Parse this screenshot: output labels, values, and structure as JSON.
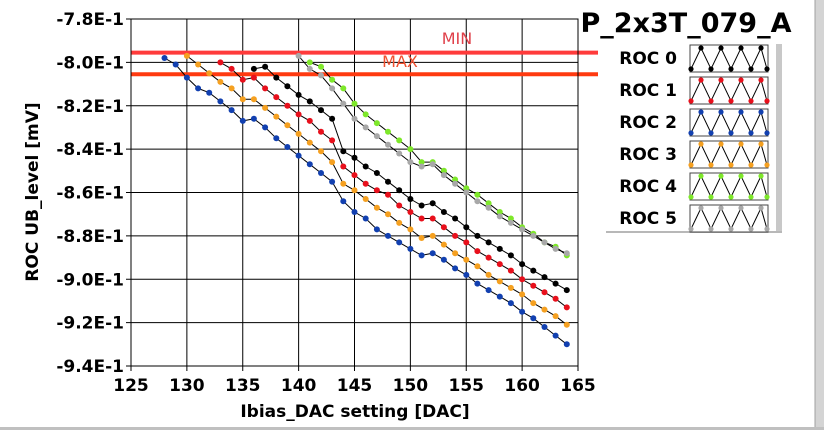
{
  "chart_data": {
    "type": "line",
    "title": "P_2x3T_079_A",
    "xlabel": "Ibias_DAC setting [DAC]",
    "ylabel": "ROC UB_level [mV]",
    "xlim": [
      125,
      165
    ],
    "ylim": [
      -0.94,
      -0.78
    ],
    "x_ticks": [
      125,
      130,
      135,
      140,
      145,
      150,
      155,
      160,
      165
    ],
    "x_tick_labels": [
      "125",
      "130",
      "135",
      "140",
      "145",
      "150",
      "155",
      "160",
      "165"
    ],
    "y_ticks": [
      -0.78,
      -0.8,
      -0.82,
      -0.84,
      -0.86,
      -0.88,
      -0.9,
      -0.92,
      -0.94
    ],
    "y_tick_labels": [
      "-7.8E-1",
      "-8.0E-1",
      "-8.2E-1",
      "-8.4E-1",
      "-8.6E-1",
      "-8.8E-1",
      "-9.0E-1",
      "-9.2E-1",
      "-9.4E-1"
    ],
    "grid": true,
    "legend_position": "right",
    "reference_lines": [
      {
        "label": "MIN",
        "value": -0.7955,
        "color": "#ff3b3b",
        "label_color": "#e0404a"
      },
      {
        "label": "MAX",
        "value": -0.8055,
        "color": "#ff3a10",
        "label_color": "#f05030"
      }
    ],
    "series": [
      {
        "name": "ROC 0",
        "color": "#000000",
        "x": [
          136,
          137,
          138,
          139,
          140,
          141,
          142,
          143,
          144,
          145,
          146,
          147,
          148,
          149,
          150,
          151,
          152,
          153,
          154,
          155,
          156,
          157,
          158,
          159,
          160,
          161,
          162,
          163,
          164
        ],
        "values": [
          -0.803,
          -0.802,
          -0.807,
          -0.811,
          -0.815,
          -0.818,
          -0.822,
          -0.826,
          -0.841,
          -0.844,
          -0.848,
          -0.851,
          -0.855,
          -0.859,
          -0.863,
          -0.866,
          -0.865,
          -0.869,
          -0.872,
          -0.876,
          -0.88,
          -0.883,
          -0.886,
          -0.889,
          -0.893,
          -0.896,
          -0.899,
          -0.902,
          -0.905
        ]
      },
      {
        "name": "ROC 1",
        "color": "#e8101c",
        "x": [
          133,
          134,
          135,
          136,
          137,
          138,
          139,
          140,
          141,
          142,
          143,
          144,
          145,
          146,
          147,
          148,
          149,
          150,
          151,
          152,
          153,
          154,
          155,
          156,
          157,
          158,
          159,
          160,
          161,
          162,
          163,
          164
        ],
        "values": [
          -0.8,
          -0.803,
          -0.808,
          -0.807,
          -0.812,
          -0.816,
          -0.82,
          -0.824,
          -0.827,
          -0.832,
          -0.836,
          -0.848,
          -0.852,
          -0.856,
          -0.859,
          -0.861,
          -0.866,
          -0.869,
          -0.872,
          -0.872,
          -0.876,
          -0.88,
          -0.883,
          -0.887,
          -0.89,
          -0.893,
          -0.896,
          -0.9,
          -0.903,
          -0.906,
          -0.909,
          -0.913
        ]
      },
      {
        "name": "ROC 2",
        "color": "#1240b0",
        "x": [
          128,
          129,
          130,
          131,
          132,
          133,
          134,
          135,
          136,
          137,
          138,
          139,
          140,
          141,
          142,
          143,
          144,
          145,
          146,
          147,
          148,
          149,
          150,
          151,
          152,
          153,
          154,
          155,
          156,
          157,
          158,
          159,
          160,
          161,
          162,
          163,
          164
        ],
        "values": [
          -0.798,
          -0.801,
          -0.807,
          -0.812,
          -0.814,
          -0.818,
          -0.822,
          -0.827,
          -0.826,
          -0.83,
          -0.835,
          -0.839,
          -0.843,
          -0.847,
          -0.851,
          -0.855,
          -0.864,
          -0.869,
          -0.872,
          -0.877,
          -0.88,
          -0.883,
          -0.886,
          -0.889,
          -0.888,
          -0.891,
          -0.895,
          -0.898,
          -0.902,
          -0.905,
          -0.908,
          -0.911,
          -0.915,
          -0.918,
          -0.922,
          -0.926,
          -0.93
        ]
      },
      {
        "name": "ROC 3",
        "color": "#f5a020",
        "x": [
          130,
          131,
          132,
          133,
          134,
          135,
          136,
          137,
          138,
          139,
          140,
          141,
          142,
          143,
          144,
          145,
          146,
          147,
          148,
          149,
          150,
          151,
          152,
          153,
          154,
          155,
          156,
          157,
          158,
          159,
          160,
          161,
          162,
          163,
          164
        ],
        "values": [
          -0.797,
          -0.801,
          -0.805,
          -0.809,
          -0.812,
          -0.817,
          -0.817,
          -0.821,
          -0.825,
          -0.829,
          -0.833,
          -0.837,
          -0.841,
          -0.846,
          -0.856,
          -0.859,
          -0.863,
          -0.867,
          -0.87,
          -0.874,
          -0.877,
          -0.881,
          -0.88,
          -0.884,
          -0.888,
          -0.891,
          -0.894,
          -0.898,
          -0.901,
          -0.904,
          -0.907,
          -0.911,
          -0.914,
          -0.917,
          -0.921
        ]
      },
      {
        "name": "ROC 4",
        "color": "#7ee82a",
        "x": [
          141,
          142,
          143,
          144,
          145,
          146,
          147,
          148,
          149,
          150,
          151,
          152,
          153,
          154,
          155,
          156,
          157,
          158,
          159,
          160,
          161,
          162,
          163,
          164
        ],
        "values": [
          -0.8,
          -0.802,
          -0.808,
          -0.812,
          -0.819,
          -0.824,
          -0.828,
          -0.832,
          -0.836,
          -0.84,
          -0.846,
          -0.846,
          -0.85,
          -0.854,
          -0.858,
          -0.861,
          -0.865,
          -0.869,
          -0.872,
          -0.876,
          -0.879,
          -0.883,
          -0.885,
          -0.889
        ]
      },
      {
        "name": "ROC 5",
        "color": "#a8a8a8",
        "x": [
          140,
          141,
          142,
          143,
          144,
          145,
          146,
          147,
          148,
          149,
          150,
          151,
          152,
          153,
          154,
          155,
          156,
          157,
          158,
          159,
          160,
          161,
          162,
          163,
          164
        ],
        "values": [
          -0.797,
          -0.803,
          -0.806,
          -0.812,
          -0.819,
          -0.826,
          -0.83,
          -0.834,
          -0.838,
          -0.842,
          -0.846,
          -0.848,
          -0.847,
          -0.852,
          -0.856,
          -0.86,
          -0.864,
          -0.867,
          -0.871,
          -0.874,
          -0.877,
          -0.88,
          -0.883,
          -0.886,
          -0.888
        ]
      }
    ]
  }
}
